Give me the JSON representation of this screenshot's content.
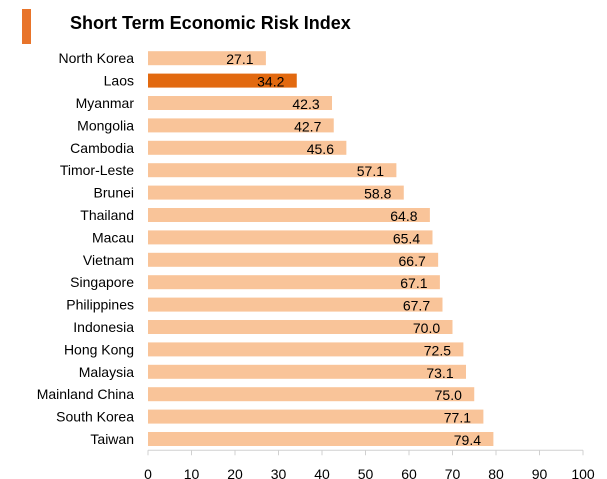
{
  "chart_data": {
    "type": "bar",
    "orientation": "horizontal",
    "title": "Short Term Economic Risk Index",
    "categories": [
      "North Korea",
      "Laos",
      "Myanmar",
      "Mongolia",
      "Cambodia",
      "Timor-Leste",
      "Brunei",
      "Thailand",
      "Macau",
      "Vietnam",
      "Singapore",
      "Philippines",
      "Indonesia",
      "Hong Kong",
      "Malaysia",
      "Mainland China",
      "South Korea",
      "Taiwan"
    ],
    "values": [
      27.1,
      34.2,
      42.3,
      42.7,
      45.6,
      57.1,
      58.8,
      64.8,
      65.4,
      66.7,
      67.1,
      67.7,
      70.0,
      72.5,
      73.1,
      75.0,
      77.1,
      79.4
    ],
    "value_labels": [
      "27.1",
      "34.2",
      "42.3",
      "42.7",
      "45.6",
      "57.1",
      "58.8",
      "64.8",
      "65.4",
      "66.7",
      "67.1",
      "67.7",
      "70.0",
      "72.5",
      "73.1",
      "75.0",
      "77.1",
      "79.4"
    ],
    "highlight": "Laos",
    "xlim": [
      0,
      100
    ],
    "xticks": [
      "0",
      "10",
      "20",
      "30",
      "40",
      "50",
      "60",
      "70",
      "80",
      "90",
      "100"
    ],
    "xlabel": "",
    "ylabel": "",
    "grid": false,
    "colors": {
      "bar": "#F9C499",
      "highlight": "#E2690F",
      "accent": "#E8742A",
      "axis": "#D0D0D0"
    }
  }
}
